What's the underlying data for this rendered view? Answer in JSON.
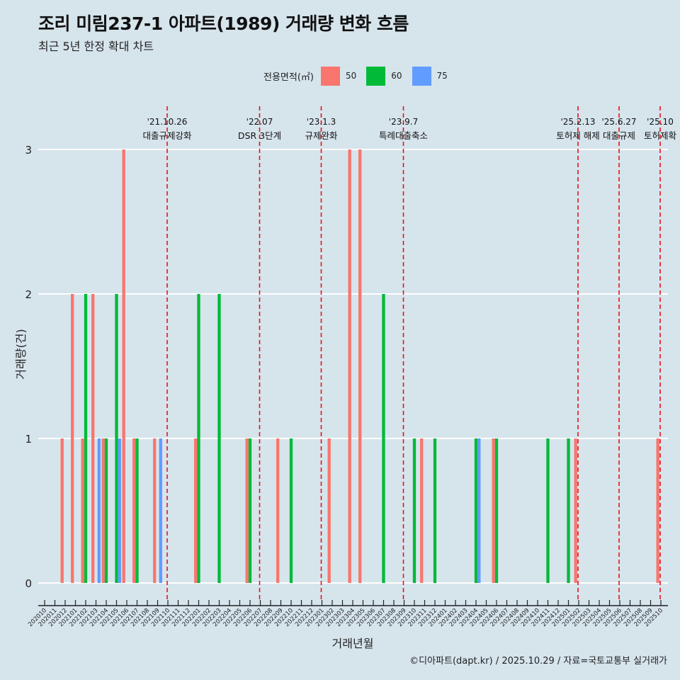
{
  "title": "조리 미림237-1 아파트(1989) 거래량 변화 흐름",
  "subtitle": "최근 5년 한정 확대 차트",
  "footer": "©디아파트(dapt.kr) / 2025.10.29 / 자료=국토교통부 실거래가",
  "legend": {
    "title": "전용면적(㎡)",
    "items": [
      {
        "label": "50",
        "color": "#f8766d"
      },
      {
        "label": "60",
        "color": "#00ba38"
      },
      {
        "label": "75",
        "color": "#619cff"
      }
    ]
  },
  "chart_data": {
    "type": "bar",
    "title": "조리 미림237-1 아파트(1989) 거래량 변화 흐름",
    "xlabel": "거래년월",
    "ylabel": "거래량(건)",
    "ylim": [
      0,
      3
    ],
    "yticks": [
      0,
      1,
      2,
      3
    ],
    "categories": [
      "202010",
      "202011",
      "202012",
      "202101",
      "202102",
      "202103",
      "202104",
      "202105",
      "202106",
      "202107",
      "202108",
      "202109",
      "202110",
      "202111",
      "202112",
      "202201",
      "202202",
      "202203",
      "202204",
      "202205",
      "202206",
      "202207",
      "202208",
      "202209",
      "202210",
      "202211",
      "202212",
      "202301",
      "202302",
      "202303",
      "202304",
      "202305",
      "202306",
      "202307",
      "202308",
      "202309",
      "202310",
      "202311",
      "202312",
      "202401",
      "202402",
      "202403",
      "202404",
      "202405",
      "202406",
      "202407",
      "202408",
      "202409",
      "202410",
      "202411",
      "202412",
      "202501",
      "202502",
      "202503",
      "202504",
      "202505",
      "202506",
      "202507",
      "202508",
      "202509",
      "202510"
    ],
    "series": [
      {
        "name": "50",
        "color": "#f8766d",
        "values": [
          0,
          0,
          1,
          2,
          1,
          2,
          1,
          0,
          3,
          1,
          0,
          1,
          0,
          0,
          0,
          1,
          0,
          0,
          0,
          0,
          1,
          0,
          0,
          1,
          0,
          0,
          0,
          0,
          1,
          0,
          3,
          3,
          0,
          0,
          0,
          0,
          0,
          1,
          0,
          0,
          0,
          0,
          0,
          0,
          1,
          0,
          0,
          0,
          0,
          0,
          0,
          0,
          1,
          0,
          0,
          0,
          0,
          0,
          0,
          0,
          1
        ]
      },
      {
        "name": "60",
        "color": "#00ba38",
        "values": [
          0,
          0,
          0,
          0,
          2,
          0,
          1,
          2,
          0,
          1,
          0,
          0,
          0,
          0,
          0,
          2,
          0,
          2,
          0,
          0,
          1,
          0,
          0,
          0,
          1,
          0,
          0,
          0,
          0,
          0,
          0,
          0,
          0,
          2,
          0,
          0,
          1,
          0,
          1,
          0,
          0,
          0,
          1,
          0,
          1,
          0,
          0,
          0,
          0,
          1,
          0,
          1,
          0,
          0,
          0,
          0,
          0,
          0,
          0,
          0,
          0
        ]
      },
      {
        "name": "75",
        "color": "#619cff",
        "values": [
          0,
          0,
          0,
          0,
          0,
          1,
          0,
          1,
          0,
          0,
          0,
          1,
          0,
          0,
          0,
          0,
          0,
          0,
          0,
          0,
          0,
          0,
          0,
          0,
          0,
          0,
          0,
          0,
          0,
          0,
          0,
          0,
          0,
          0,
          0,
          0,
          0,
          0,
          0,
          0,
          0,
          0,
          1,
          0,
          0,
          0,
          0,
          0,
          0,
          0,
          0,
          0,
          0,
          0,
          0,
          0,
          0,
          0,
          0,
          0,
          0
        ]
      }
    ],
    "annotations": [
      {
        "at": "202110",
        "date": "'21.10.26",
        "text": "대출규제강화"
      },
      {
        "at": "202207",
        "date": "'22.07",
        "text": "DSR 3단계"
      },
      {
        "at": "202301",
        "date": "'23.1.3",
        "text": "규제완화"
      },
      {
        "at": "202309",
        "date": "'23.9.7",
        "text": "특례대출축소"
      },
      {
        "at": "202502",
        "date": "'25.2.13",
        "text": "토허제 해제"
      },
      {
        "at": "202506",
        "date": "'25.6.27",
        "text": "대출규제"
      },
      {
        "at": "202510",
        "date": "'25.10",
        "text": "토허제확"
      }
    ]
  }
}
